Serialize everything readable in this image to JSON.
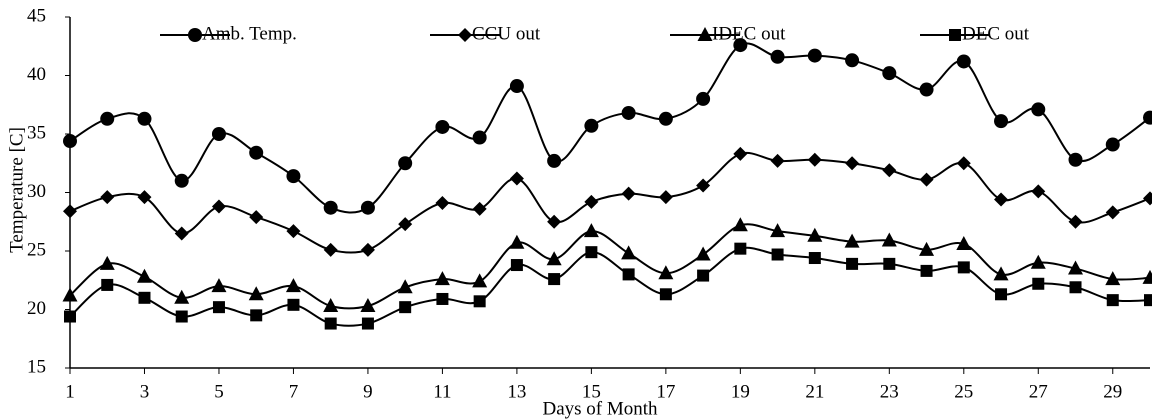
{
  "chart_data": {
    "type": "line",
    "x_label": "Days of Month",
    "y_label": "Temperature [C]",
    "x": [
      1,
      2,
      3,
      4,
      5,
      6,
      7,
      8,
      9,
      10,
      11,
      12,
      13,
      14,
      15,
      16,
      17,
      18,
      19,
      20,
      21,
      22,
      23,
      24,
      25,
      26,
      27,
      28,
      29,
      30
    ],
    "xlim": [
      1,
      30
    ],
    "xticks": [
      1,
      3,
      5,
      7,
      9,
      11,
      13,
      15,
      17,
      19,
      21,
      23,
      25,
      27,
      29
    ],
    "ylim": [
      15,
      45
    ],
    "yticks": [
      15,
      20,
      25,
      30,
      35,
      40,
      45
    ],
    "grid": false,
    "legend": "top",
    "smooth": true,
    "series": [
      {
        "name": "Amb. Temp.",
        "color": "#000000",
        "marker": "circle",
        "values": [
          34.4,
          36.3,
          36.3,
          31.0,
          35.0,
          33.4,
          31.4,
          28.7,
          28.7,
          32.5,
          35.6,
          34.7,
          39.1,
          32.7,
          35.7,
          36.8,
          36.3,
          38.0,
          42.6,
          41.6,
          41.7,
          41.3,
          40.2,
          38.8,
          41.2,
          36.1,
          37.1,
          32.8,
          34.1,
          36.4
        ]
      },
      {
        "name": "CCU out",
        "color": "#000000",
        "marker": "diamond",
        "values": [
          28.4,
          29.6,
          29.6,
          26.5,
          28.8,
          27.9,
          26.7,
          25.1,
          25.1,
          27.3,
          29.1,
          28.6,
          31.2,
          27.5,
          29.2,
          29.9,
          29.6,
          30.6,
          33.3,
          32.7,
          32.8,
          32.5,
          31.9,
          31.1,
          32.5,
          29.4,
          30.1,
          27.5,
          28.3,
          29.5
        ]
      },
      {
        "name": "IDEC out",
        "color": "#000000",
        "marker": "triangle",
        "values": [
          21.2,
          23.9,
          22.8,
          21.0,
          22.0,
          21.3,
          22.0,
          20.3,
          20.3,
          21.9,
          22.6,
          22.4,
          25.7,
          24.3,
          26.7,
          24.8,
          23.1,
          24.7,
          27.2,
          26.7,
          26.3,
          25.8,
          25.9,
          25.1,
          25.6,
          23.0,
          24.0,
          23.5,
          22.6,
          22.7
        ]
      },
      {
        "name": "DEC out",
        "color": "#000000",
        "marker": "square",
        "values": [
          19.4,
          22.1,
          21.0,
          19.4,
          20.2,
          19.5,
          20.4,
          18.8,
          18.8,
          20.2,
          20.9,
          20.7,
          23.8,
          22.6,
          24.9,
          23.0,
          21.3,
          22.9,
          25.2,
          24.7,
          24.4,
          23.9,
          23.9,
          23.3,
          23.6,
          21.3,
          22.2,
          21.9,
          20.8,
          20.8
        ]
      }
    ]
  }
}
